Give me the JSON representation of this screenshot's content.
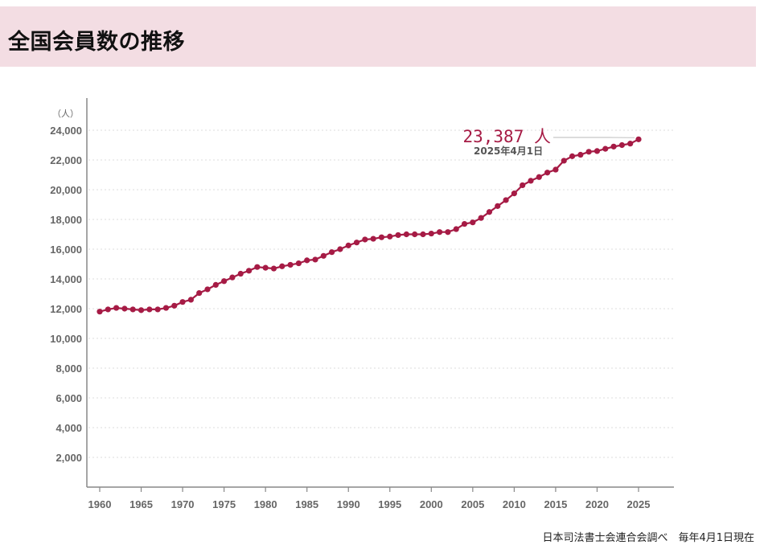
{
  "header": {
    "title": "全国会員数の推移"
  },
  "chart_data": {
    "type": "line",
    "title": "全国会員数の推移",
    "unit_label": "（人）",
    "x": [
      1960,
      1961,
      1962,
      1963,
      1964,
      1965,
      1966,
      1967,
      1968,
      1969,
      1970,
      1971,
      1972,
      1973,
      1974,
      1975,
      1976,
      1977,
      1978,
      1979,
      1980,
      1981,
      1982,
      1983,
      1984,
      1985,
      1986,
      1987,
      1988,
      1989,
      1990,
      1991,
      1992,
      1993,
      1994,
      1995,
      1996,
      1997,
      1998,
      1999,
      2000,
      2001,
      2002,
      2003,
      2004,
      2005,
      2006,
      2007,
      2008,
      2009,
      2010,
      2011,
      2012,
      2013,
      2014,
      2015,
      2016,
      2017,
      2018,
      2019,
      2020,
      2021,
      2022,
      2023,
      2024,
      2025
    ],
    "series": [
      {
        "values": [
          11800,
          11950,
          12050,
          12000,
          11950,
          11900,
          11950,
          11950,
          12050,
          12200,
          12450,
          12600,
          13050,
          13300,
          13600,
          13850,
          14100,
          14350,
          14550,
          14800,
          14750,
          14700,
          14850,
          14950,
          15050,
          15250,
          15300,
          15550,
          15800,
          16000,
          16250,
          16450,
          16650,
          16700,
          16800,
          16850,
          16950,
          17000,
          17000,
          17000,
          17050,
          17150,
          17150,
          17350,
          17700,
          17800,
          18100,
          18500,
          18900,
          19300,
          19750,
          20300,
          20600,
          20850,
          21150,
          21350,
          21950,
          22250,
          22350,
          22550,
          22600,
          22750,
          22900,
          23000,
          23100,
          23387
        ]
      }
    ],
    "x_ticks": [
      1960,
      1965,
      1970,
      1975,
      1980,
      1985,
      1990,
      1995,
      2000,
      2005,
      2010,
      2015,
      2020,
      2025
    ],
    "x_tick_labels": [
      "1960",
      "1965",
      "1970",
      "1975",
      "1980",
      "1985",
      "1990",
      "1995",
      "2000",
      "2005",
      "2010",
      "2015",
      "2020",
      "2025"
    ],
    "y_ticks": [
      2000,
      4000,
      6000,
      8000,
      10000,
      12000,
      14000,
      16000,
      18000,
      20000,
      22000,
      24000
    ],
    "y_tick_labels": [
      "2,000",
      "4,000",
      "6,000",
      "8,000",
      "10,000",
      "12,000",
      "14,000",
      "16,000",
      "18,000",
      "20,000",
      "22,000",
      "24,000"
    ],
    "xlim": [
      1959.5,
      2027
    ],
    "ylim": [
      0,
      25000
    ],
    "grid": "horizontal dotted",
    "colors": {
      "series": "#a61b45",
      "axis": "#888888",
      "grid": "#dddddd",
      "tick_text": "#666666",
      "callout_value": "#a61b45",
      "callout_date": "#555555"
    },
    "annotation": {
      "value_text": "23,387 人",
      "date_text": "2025年4月1日",
      "x": 2025,
      "y": 23387
    }
  },
  "footer": {
    "note": "日本司法書士会連合会調べ　毎年4月1日現在"
  }
}
